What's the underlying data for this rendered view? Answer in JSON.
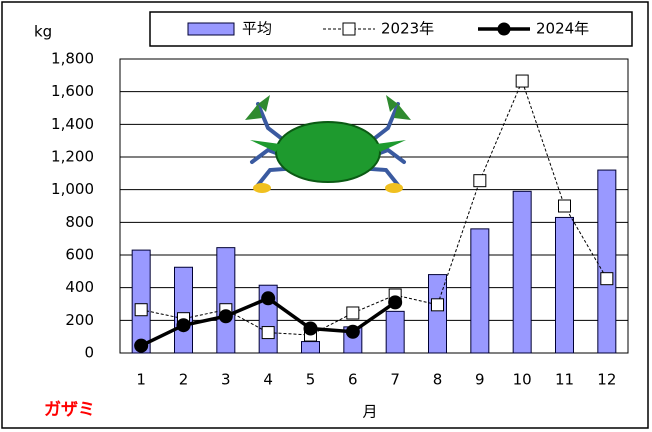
{
  "chart_data": {
    "type": "bar",
    "y_unit": "kg",
    "x_label": "月",
    "annotation": "ガザミ",
    "categories": [
      "1",
      "2",
      "3",
      "4",
      "5",
      "6",
      "7",
      "8",
      "9",
      "10",
      "11",
      "12"
    ],
    "series": [
      {
        "name": "平均",
        "type": "bar",
        "color": "#9999ff",
        "values": [
          630,
          525,
          645,
          415,
          70,
          160,
          255,
          480,
          760,
          990,
          830,
          1120
        ]
      },
      {
        "name": "2023年",
        "type": "line",
        "marker": "square",
        "dashed": true,
        "color": "#000000",
        "values": [
          265,
          210,
          265,
          125,
          110,
          245,
          355,
          295,
          1055,
          1665,
          900,
          455
        ]
      },
      {
        "name": "2024年",
        "type": "line",
        "marker": "circle",
        "dashed": false,
        "color": "#000000",
        "values": [
          45,
          170,
          225,
          335,
          150,
          130,
          310,
          null,
          null,
          null,
          null,
          null
        ]
      }
    ],
    "ylim": [
      0,
      1800
    ],
    "yticks": [
      0,
      200,
      400,
      600,
      800,
      {
        "value": 1000,
        "label": "1,000"
      },
      {
        "value": 1200,
        "label": "1,200"
      },
      {
        "value": 1400,
        "label": "1,400"
      },
      {
        "value": 1600,
        "label": "1,600"
      },
      {
        "value": 1800,
        "label": "1,800"
      }
    ],
    "grid": true
  }
}
